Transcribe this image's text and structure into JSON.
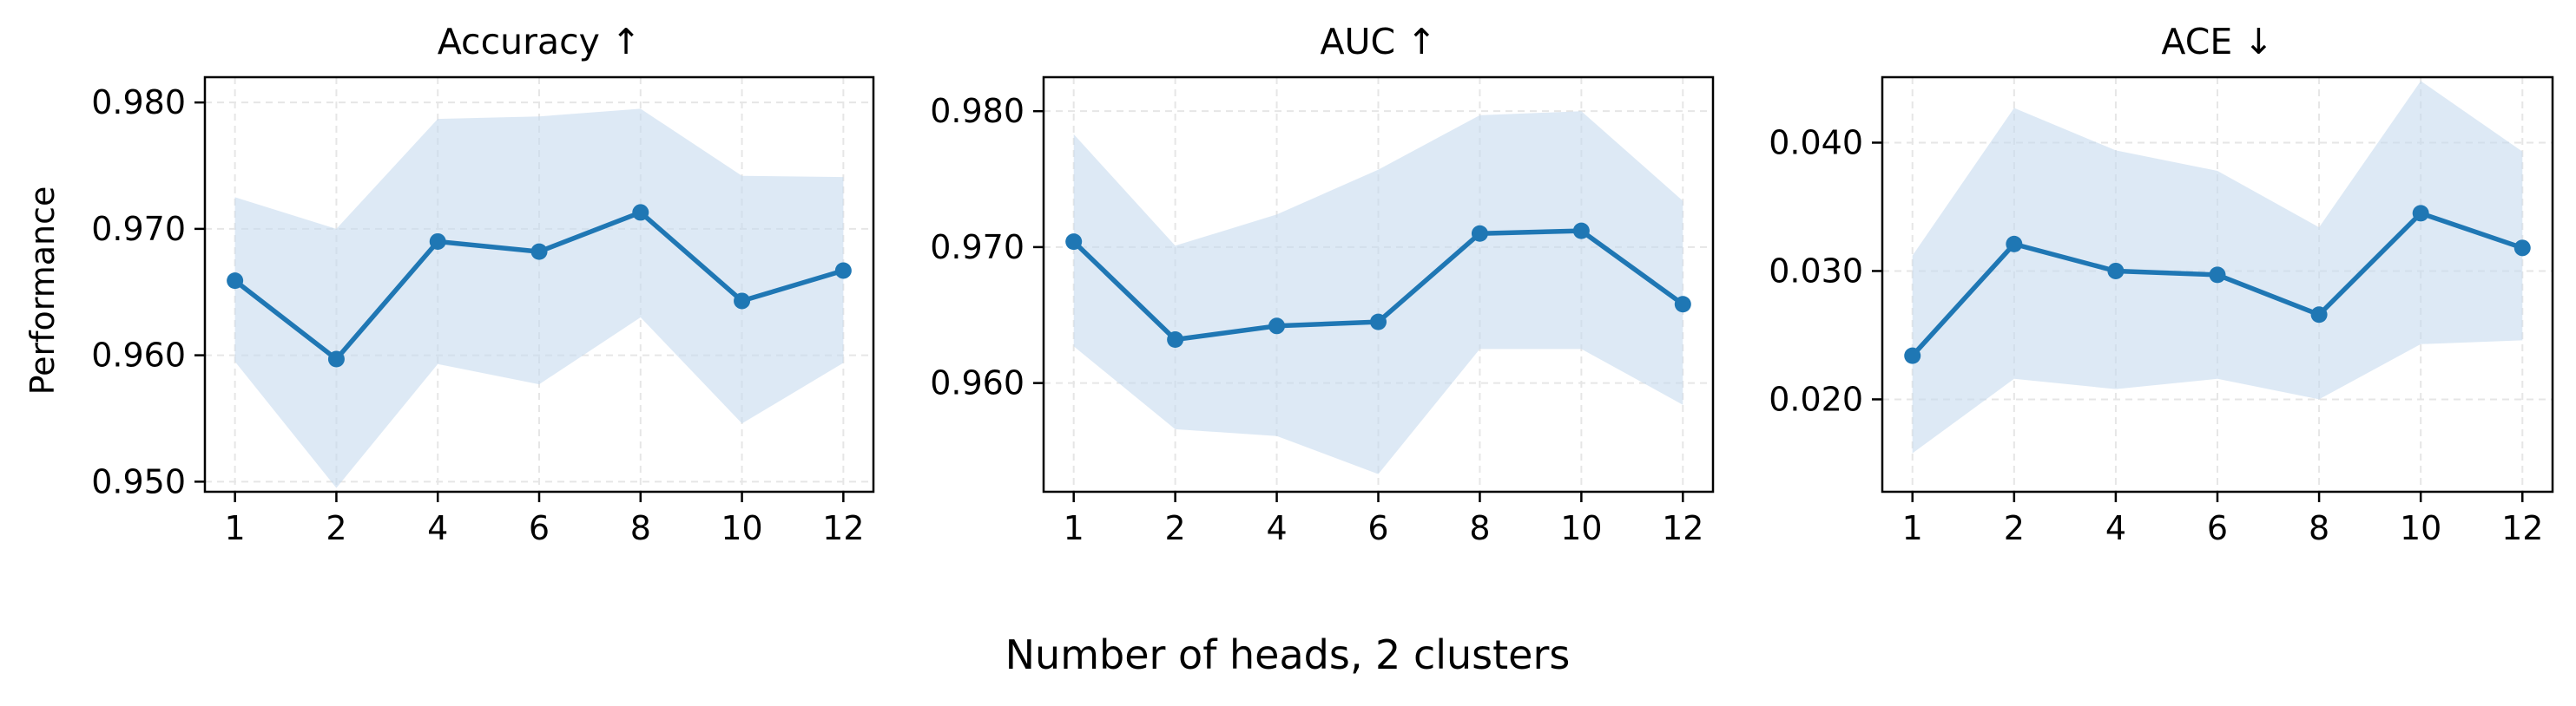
{
  "figure": {
    "shared_xlabel": "Number of heads, 2 clusters",
    "ylabel": "Performance"
  },
  "colors": {
    "line": "#1f77b4",
    "band": "#c6dbef",
    "grid": "#e6e6e6",
    "axis": "#000000"
  },
  "chart_data": [
    {
      "type": "line",
      "title": "Accuracy ↑",
      "categories": [
        "1",
        "2",
        "4",
        "6",
        "8",
        "10",
        "12"
      ],
      "values": [
        0.9659,
        0.9597,
        0.969,
        0.9682,
        0.9713,
        0.9643,
        0.9667
      ],
      "band_upper": [
        0.9725,
        0.97,
        0.9787,
        0.9789,
        0.9795,
        0.9742,
        0.9741
      ],
      "band_lower": [
        0.9595,
        0.9495,
        0.9593,
        0.9577,
        0.963,
        0.9546,
        0.9594
      ],
      "ylim": [
        0.9492,
        0.982
      ],
      "yticks": [
        "0.950",
        "0.960",
        "0.970",
        "0.980"
      ],
      "ytick_values": [
        0.95,
        0.96,
        0.97,
        0.98
      ],
      "grid": true
    },
    {
      "type": "line",
      "title": "AUC ↑",
      "categories": [
        "1",
        "2",
        "4",
        "6",
        "8",
        "10",
        "12"
      ],
      "values": [
        0.9704,
        0.9632,
        0.9642,
        0.9645,
        0.971,
        0.9712,
        0.9658
      ],
      "band_upper": [
        0.9783,
        0.9701,
        0.9724,
        0.9757,
        0.9797,
        0.98,
        0.9734
      ],
      "band_lower": [
        0.9627,
        0.9566,
        0.9561,
        0.9533,
        0.9625,
        0.9625,
        0.9584
      ],
      "ylim": [
        0.952,
        0.9825
      ],
      "yticks": [
        "0.960",
        "0.970",
        "0.980"
      ],
      "ytick_values": [
        0.96,
        0.97,
        0.98
      ],
      "grid": true
    },
    {
      "type": "line",
      "title": "ACE ↓",
      "categories": [
        "1",
        "2",
        "4",
        "6",
        "8",
        "10",
        "12"
      ],
      "values": [
        0.0234,
        0.0321,
        0.03,
        0.0297,
        0.0266,
        0.0345,
        0.0318
      ],
      "band_upper": [
        0.0312,
        0.0427,
        0.0394,
        0.0378,
        0.0334,
        0.0448,
        0.0393
      ],
      "band_lower": [
        0.0158,
        0.0216,
        0.0208,
        0.0216,
        0.02,
        0.0243,
        0.0246
      ],
      "ylim": [
        0.0128,
        0.0451
      ],
      "yticks": [
        "0.020",
        "0.030",
        "0.040"
      ],
      "ytick_values": [
        0.02,
        0.03,
        0.04
      ],
      "grid": true
    }
  ]
}
